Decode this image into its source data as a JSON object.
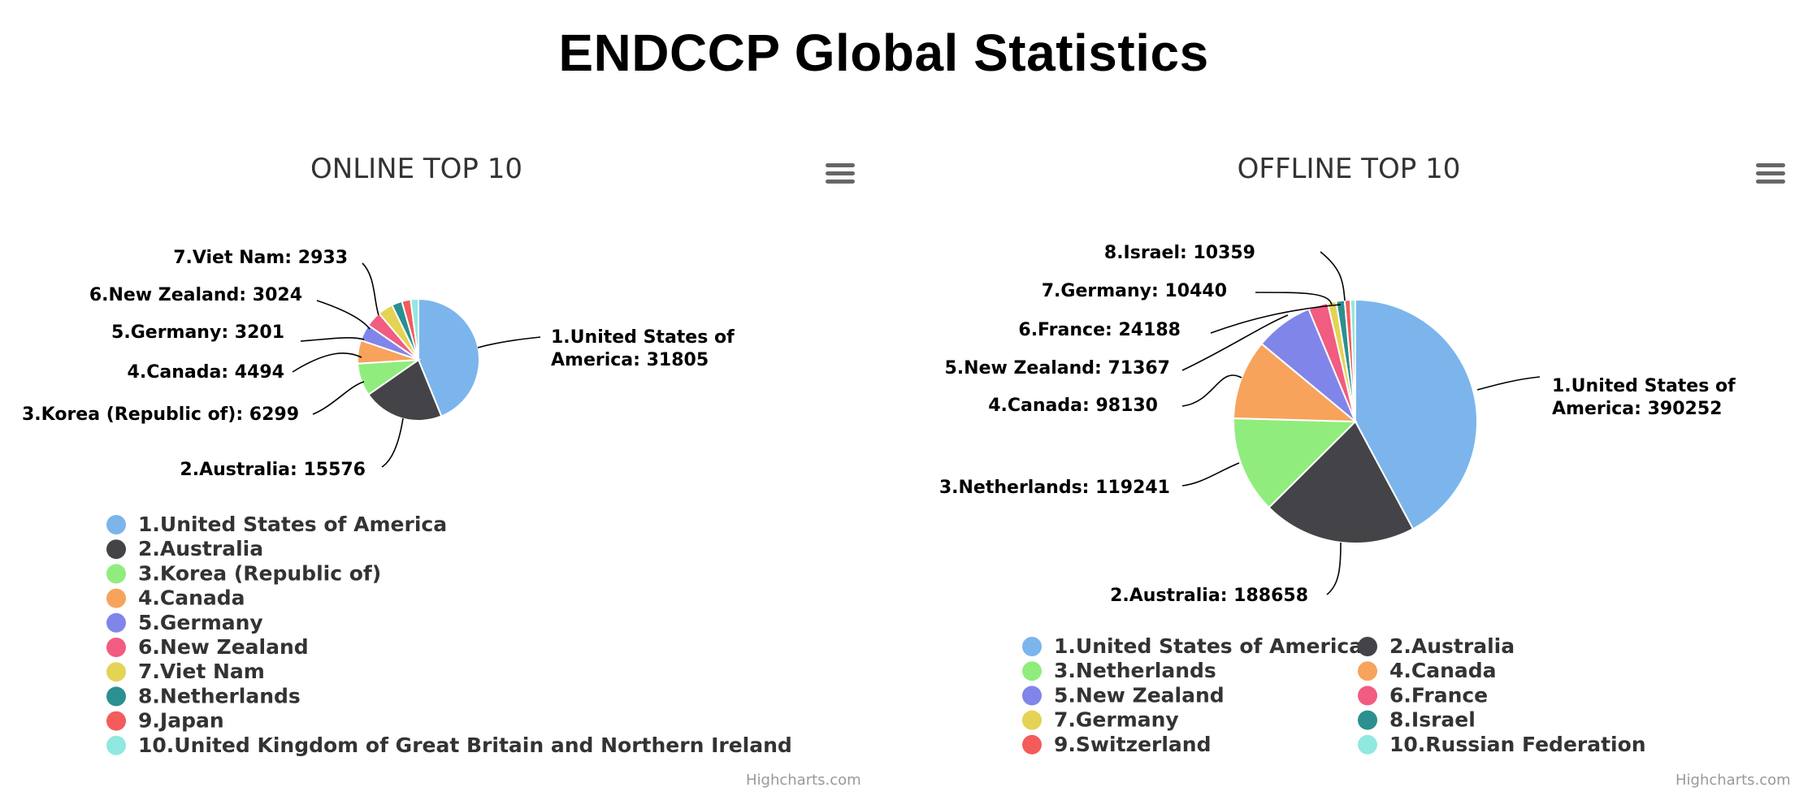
{
  "page": {
    "title": "ENDCCP Global Statistics"
  },
  "credit": "Highcharts.com",
  "colors": [
    "#7cb5ec",
    "#434348",
    "#90ed7d",
    "#f7a35c",
    "#8085e9",
    "#f15c80",
    "#e4d354",
    "#2b908f",
    "#f45b5b",
    "#91e8e1"
  ],
  "menu_icon": "hamburger-menu-icon",
  "chart_data": [
    {
      "type": "pie",
      "title": "ONLINE TOP 10",
      "legend_position": "bottom",
      "series": [
        {
          "data": [
            {
              "name": "1.United States of America",
              "y": 31805,
              "label_lines": [
                "1.United States of",
                "America: 31805"
              ]
            },
            {
              "name": "2.Australia",
              "y": 15576,
              "label_lines": [
                "2.Australia: 15576"
              ]
            },
            {
              "name": "3.Korea (Republic of)",
              "y": 6299,
              "label_lines": [
                "3.Korea (Republic of): 6299"
              ]
            },
            {
              "name": "4.Canada",
              "y": 4494,
              "label_lines": [
                "4.Canada: 4494"
              ]
            },
            {
              "name": "5.Germany",
              "y": 3201,
              "label_lines": [
                "5.Germany: 3201"
              ]
            },
            {
              "name": "6.New Zealand",
              "y": 3024,
              "label_lines": [
                "6.New Zealand: 3024"
              ]
            },
            {
              "name": "7.Viet Nam",
              "y": 2933,
              "label_lines": [
                "7.Viet Nam: 2933"
              ]
            },
            {
              "name": "8.Netherlands",
              "y": 2000
            },
            {
              "name": "9.Japan",
              "y": 1700
            },
            {
              "name": "10.United Kingdom of Great Britain and Northern Ireland",
              "y": 1500
            }
          ]
        }
      ]
    },
    {
      "type": "pie",
      "title": "OFFLINE TOP 10",
      "legend_position": "bottom",
      "series": [
        {
          "data": [
            {
              "name": "1.United States of America",
              "y": 390252,
              "label_lines": [
                "1.United States of",
                "America: 390252"
              ]
            },
            {
              "name": "2.Australia",
              "y": 188658,
              "label_lines": [
                "2.Australia: 188658"
              ]
            },
            {
              "name": "3.Netherlands",
              "y": 119241,
              "label_lines": [
                "3.Netherlands: 119241"
              ]
            },
            {
              "name": "4.Canada",
              "y": 98130,
              "label_lines": [
                "4.Canada: 98130"
              ]
            },
            {
              "name": "5.New Zealand",
              "y": 71367,
              "label_lines": [
                "5.New Zealand: 71367"
              ]
            },
            {
              "name": "6.France",
              "y": 24188,
              "label_lines": [
                "6.France: 24188"
              ]
            },
            {
              "name": "7.Germany",
              "y": 10440,
              "label_lines": [
                "7.Germany: 10440"
              ]
            },
            {
              "name": "8.Israel",
              "y": 10359,
              "label_lines": [
                "8.Israel: 10359"
              ]
            },
            {
              "name": "9.Switzerland",
              "y": 7000
            },
            {
              "name": "10.Russian Federation",
              "y": 6000
            }
          ]
        }
      ]
    }
  ]
}
